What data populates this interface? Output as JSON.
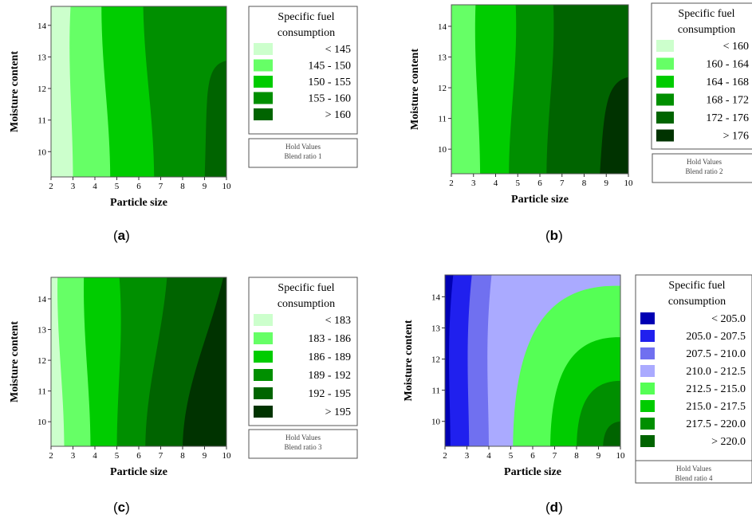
{
  "chart_data": [
    {
      "type": "heatmap",
      "panel": "a",
      "xlabel": "Particle size",
      "ylabel": "Moisture content",
      "x_ticks": [
        2,
        3,
        4,
        5,
        6,
        7,
        8,
        9,
        10
      ],
      "y_ticks": [
        10,
        11,
        12,
        13,
        14
      ],
      "xlim": [
        2,
        10
      ],
      "ylim": [
        9.2,
        14.6
      ],
      "legend_title": [
        "Specific fuel",
        "consumption"
      ],
      "legend": [
        {
          "label": "<  145",
          "color": "#ccffcc"
        },
        {
          "label": "145  -  150",
          "color": "#66ff66"
        },
        {
          "label": "150  -  155",
          "color": "#00cc00"
        },
        {
          "label": "155  -  160",
          "color": "#008f00"
        },
        {
          "label": ">  160",
          "color": "#006400"
        }
      ],
      "boundaries_at_y_top": [
        2.9,
        4.3,
        6.2,
        10.0
      ],
      "boundaries_at_y_bottom": [
        3.0,
        4.7,
        6.7,
        9.0
      ],
      "hold_values": [
        "Hold Values",
        "Blend ratio   1"
      ],
      "caption": "a"
    },
    {
      "type": "heatmap",
      "panel": "b",
      "xlabel": "Particle size",
      "ylabel": "Moisture content",
      "x_ticks": [
        2,
        3,
        4,
        5,
        6,
        7,
        8,
        9,
        10
      ],
      "y_ticks": [
        10,
        11,
        12,
        13,
        14
      ],
      "xlim": [
        2,
        10
      ],
      "ylim": [
        9.2,
        14.7
      ],
      "legend_title": [
        "Specific fuel",
        "consumption"
      ],
      "legend": [
        {
          "label": "<  160",
          "color": "#ccffcc"
        },
        {
          "label": "160  -  164",
          "color": "#66ff66"
        },
        {
          "label": "164  -  168",
          "color": "#00cc00"
        },
        {
          "label": "168  -  172",
          "color": "#008f00"
        },
        {
          "label": "172  -  176",
          "color": "#006400"
        },
        {
          "label": ">  176",
          "color": "#003300"
        }
      ],
      "boundaries_at_y_top": [
        1.8,
        3.1,
        4.9,
        6.6,
        10.0
      ],
      "boundaries_at_y_bottom": [
        1.9,
        3.3,
        4.6,
        6.3,
        8.7
      ],
      "hold_values": [
        "Hold Values",
        "Blend ratio   2"
      ],
      "caption": "b"
    },
    {
      "type": "heatmap",
      "panel": "c",
      "xlabel": "Particle size",
      "ylabel": "Moisture content",
      "x_ticks": [
        2,
        3,
        4,
        5,
        6,
        7,
        8,
        9,
        10
      ],
      "y_ticks": [
        10,
        11,
        12,
        13,
        14
      ],
      "xlim": [
        2,
        10
      ],
      "ylim": [
        9.2,
        14.7
      ],
      "legend_title": [
        "Specific fuel",
        "consumption"
      ],
      "legend": [
        {
          "label": "<  183",
          "color": "#ccffcc"
        },
        {
          "label": "183  -  186",
          "color": "#66ff66"
        },
        {
          "label": "186  -  189",
          "color": "#00cc00"
        },
        {
          "label": "189  -  192",
          "color": "#008f00"
        },
        {
          "label": "192  -  195",
          "color": "#006400"
        },
        {
          "label": ">  195",
          "color": "#003300"
        }
      ],
      "boundaries_at_y_top": [
        2.3,
        3.5,
        5.1,
        7.3,
        9.9
      ],
      "boundaries_at_y_bottom": [
        2.6,
        3.8,
        5.0,
        6.3,
        8.0
      ],
      "hold_values": [
        "Hold Values",
        "Blend ratio   3"
      ],
      "caption": "c"
    },
    {
      "type": "heatmap",
      "panel": "d",
      "xlabel": "Particle size",
      "ylabel": "Moisture content",
      "x_ticks": [
        2,
        3,
        4,
        5,
        6,
        7,
        8,
        9,
        10
      ],
      "y_ticks": [
        10,
        11,
        12,
        13,
        14
      ],
      "xlim": [
        2,
        10
      ],
      "ylim": [
        9.2,
        14.7
      ],
      "legend_title": [
        "Specific fuel",
        "consumption"
      ],
      "legend": [
        {
          "label": "<  205.0",
          "color": "#0000b4"
        },
        {
          "label": "205.0  -  207.5",
          "color": "#2020ee"
        },
        {
          "label": "207.5  -  210.0",
          "color": "#7070f0"
        },
        {
          "label": "210.0  -  212.5",
          "color": "#aaaaff"
        },
        {
          "label": "212.5  -  215.0",
          "color": "#55ff55"
        },
        {
          "label": "215.0  -  217.5",
          "color": "#00cc00"
        },
        {
          "label": "217.5  -  220.0",
          "color": "#008f00"
        },
        {
          "label": ">  220.0",
          "color": "#006400"
        }
      ],
      "hold_values": [
        "Hold Values",
        "Blend ratio   4"
      ],
      "caption": "d"
    }
  ]
}
